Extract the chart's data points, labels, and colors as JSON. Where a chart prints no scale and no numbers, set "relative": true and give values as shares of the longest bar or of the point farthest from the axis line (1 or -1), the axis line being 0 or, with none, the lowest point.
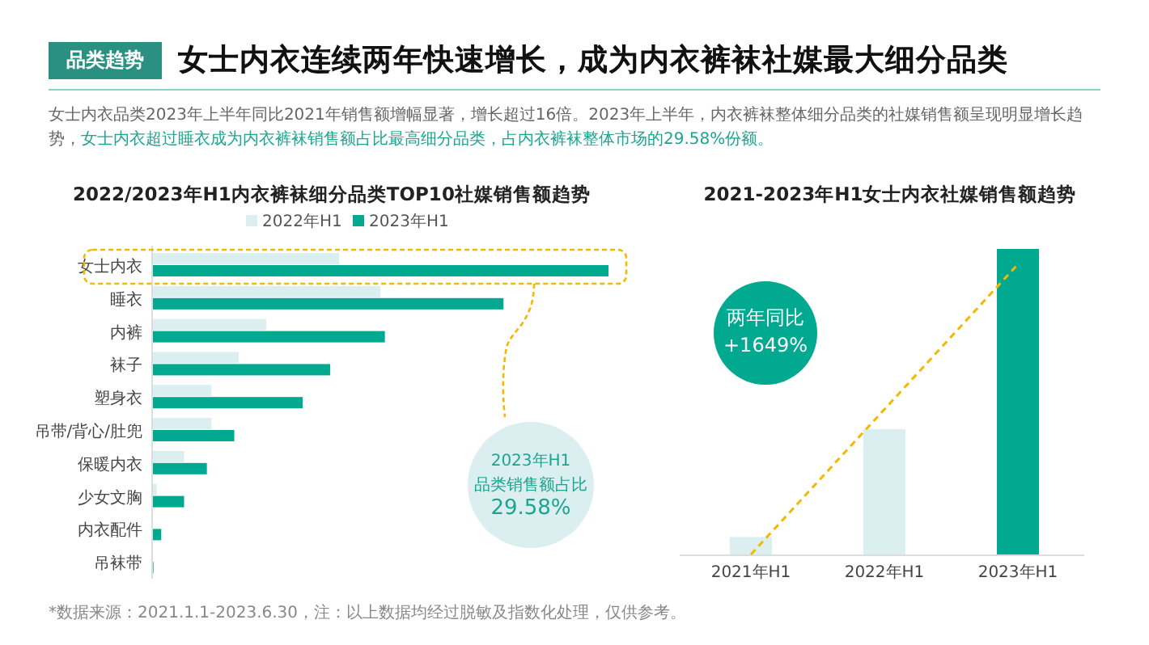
{
  "chart_data": [
    {
      "type": "other",
      "title": "女士内衣连续两年快速增长，成为内衣裤袜社媒最大细分品类",
      "subtitle": "女士内衣品类2023年上半年同比2021年销售额增幅显著，增长超过16倍。2023年上半年，内衣裤袜整体细分品类的社媒销售额呈现明显增长趋势，",
      "annotations": [
        "品类趋势",
        "女士内衣超过睡衣成为内衣裤袜销售额占比最高细分品类，占内衣裤袜整体市场的29.58%份额。",
        "*数据来源：2021.1.1-2023.6.30，注：以上数据均经过脱敏及指数化处理，仅供参考。"
      ]
    },
    {
      "type": "bar",
      "orientation": "horizontal",
      "relative": true,
      "title": "2022/2023年H1内衣裤袜细分品类TOP10社媒销售额趋势",
      "legend": "top",
      "categories": [
        "女士内衣",
        "睡衣",
        "内裤",
        "袜子",
        "塑身衣",
        "吊带/背心/肚兜",
        "保暖内衣",
        "少女文胸",
        "内衣配件",
        "吊袜带"
      ],
      "series": [
        {
          "name": "2022年H1",
          "color": "#dceff0",
          "values": [
            0.41,
            0.5,
            0.25,
            0.19,
            0.13,
            0.13,
            0.07,
            0.01,
            0,
            0
          ]
        },
        {
          "name": "2023年H1",
          "color": "#00a98f",
          "values": [
            1,
            0.77,
            0.51,
            0.39,
            0.33,
            0.18,
            0.12,
            0.07,
            0.02,
            0.003
          ]
        }
      ],
      "annotations": [
        "2023年H1\n品类销售额占比\n29.58%"
      ]
    },
    {
      "type": "bar",
      "relative": true,
      "title": "2021-2023年H1女士内衣社媒销售额趋势",
      "categories": [
        "2021年H1",
        "2022年H1",
        "2023年H1"
      ],
      "series": [
        {
          "colors": [
            "#dceff0",
            "#dceff0",
            "#00a98f"
          ],
          "values": [
            0.057,
            0.41,
            1
          ]
        },
        {
          "type": "line",
          "color": "#f5b800",
          "line_style": "dashed",
          "marker": "none",
          "values": [
            0,
            null,
            0.95
          ]
        }
      ],
      "annotations": [
        "两年同比\n+1649%"
      ]
    }
  ]
}
